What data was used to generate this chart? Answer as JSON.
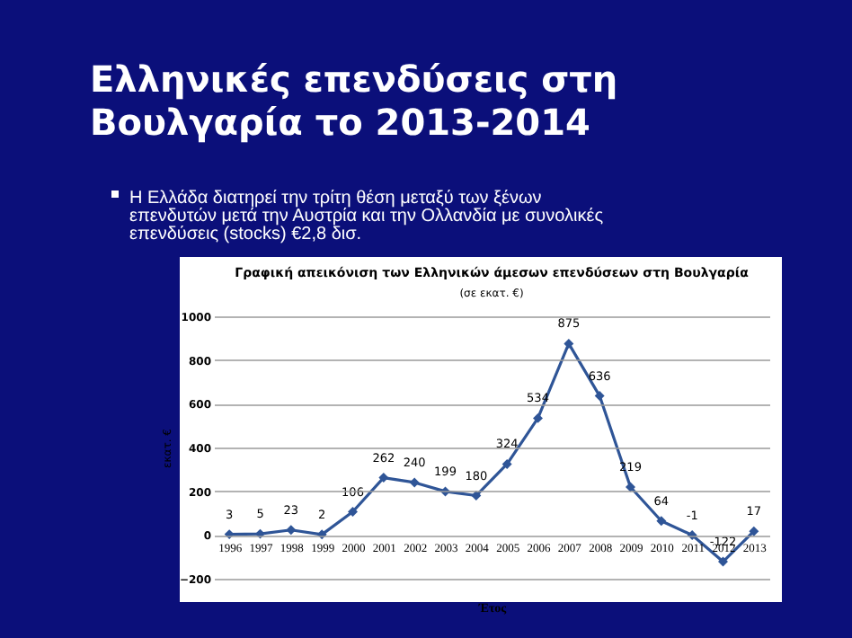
{
  "chart_data": {
    "type": "line",
    "title": "Γραφική απεικόνιση των Ελληνικών άμεσων επενδύσεων στη Βουλγαρία",
    "subtitle": "(σε εκατ. €)",
    "annotations": [
      "Ελληνικές επενδύσεις στη Βουλγαρία το 2013-2014",
      "Η Ελλάδα διατηρεί την τρίτη θέση μεταξύ των ξένων επενδυτών μετά την Αυστρία και την Ολλανδία με συνολικές επενδύσεις (stocks) €2,8 δισ."
    ],
    "xlabel": "Έτος",
    "ylabel": "εκατ. €",
    "categories": [
      "1996",
      "1997",
      "1998",
      "1999",
      "2000",
      "2001",
      "2002",
      "2003",
      "2004",
      "2005",
      "2006",
      "2007",
      "2008",
      "2009",
      "2010",
      "2011",
      "2012",
      "2013"
    ],
    "series": [
      {
        "color": "#2f5597",
        "values": [
          3,
          5,
          23,
          2,
          106,
          262,
          240,
          199,
          180,
          324,
          534,
          875,
          636,
          219,
          64,
          -1,
          -122,
          17
        ]
      }
    ],
    "ylim": [
      -200,
      1000
    ],
    "yticks": [
      -200,
      0,
      200,
      400,
      600,
      800,
      1000
    ],
    "grid": "y",
    "marker": "diamond",
    "line_style": "solid",
    "data_labels": true
  }
}
